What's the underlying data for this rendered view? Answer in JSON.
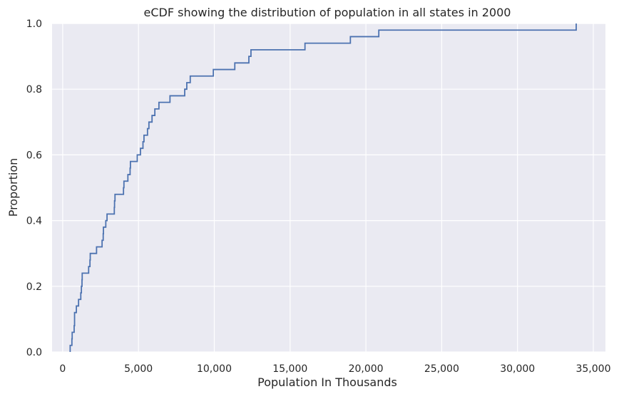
{
  "chart_data": {
    "type": "line",
    "subtype": "ecdf-step",
    "title": "eCDF showing the distribution of population in all states in 2000",
    "xlabel": "Population In Thousands",
    "ylabel": "Proportion",
    "xlim": [
      -700,
      35800
    ],
    "ylim": [
      0,
      1
    ],
    "xticks": [
      0,
      5000,
      10000,
      15000,
      20000,
      25000,
      30000,
      35000
    ],
    "xtick_labels": [
      "0",
      "5,000",
      "10,000",
      "15,000",
      "20,000",
      "25,000",
      "30,000",
      "35,000"
    ],
    "yticks": [
      0,
      0.2,
      0.4,
      0.6,
      0.8,
      1.0
    ],
    "ytick_labels": [
      "0.0",
      "0.2",
      "0.4",
      "0.6",
      "0.8",
      "1.0"
    ],
    "grid": true,
    "background": "#eaeaf2",
    "grid_color": "#ffffff",
    "line_color": "#4c72b0",
    "series": [
      {
        "values_x": [
          494,
          609,
          627,
          757,
          784,
          903,
          1048,
          1195,
          1235,
          1275,
          1288,
          1713,
          1800,
          1819,
          2234,
          2599,
          2673,
          2688,
          2844,
          2926,
          3406,
          3421,
          3451,
          4012,
          4041,
          4301,
          4447,
          4469,
          4919,
          5130,
          5296,
          5363,
          5595,
          5689,
          5894,
          6080,
          6349,
          7078,
          8049,
          8186,
          8414,
          9938,
          11353,
          12281,
          12419,
          15982,
          18976,
          20851,
          33871
        ],
        "values_y": [
          0.02,
          0.04,
          0.06,
          0.08,
          0.12,
          0.14,
          0.16,
          0.18,
          0.2,
          0.22,
          0.24,
          0.26,
          0.28,
          0.3,
          0.32,
          0.34,
          0.36,
          0.38,
          0.4,
          0.42,
          0.44,
          0.46,
          0.48,
          0.5,
          0.52,
          0.54,
          0.56,
          0.58,
          0.6,
          0.62,
          0.64,
          0.66,
          0.68,
          0.7,
          0.72,
          0.74,
          0.76,
          0.78,
          0.8,
          0.82,
          0.84,
          0.86,
          0.88,
          0.9,
          0.92,
          0.94,
          0.96,
          0.98,
          1.0
        ]
      }
    ]
  }
}
